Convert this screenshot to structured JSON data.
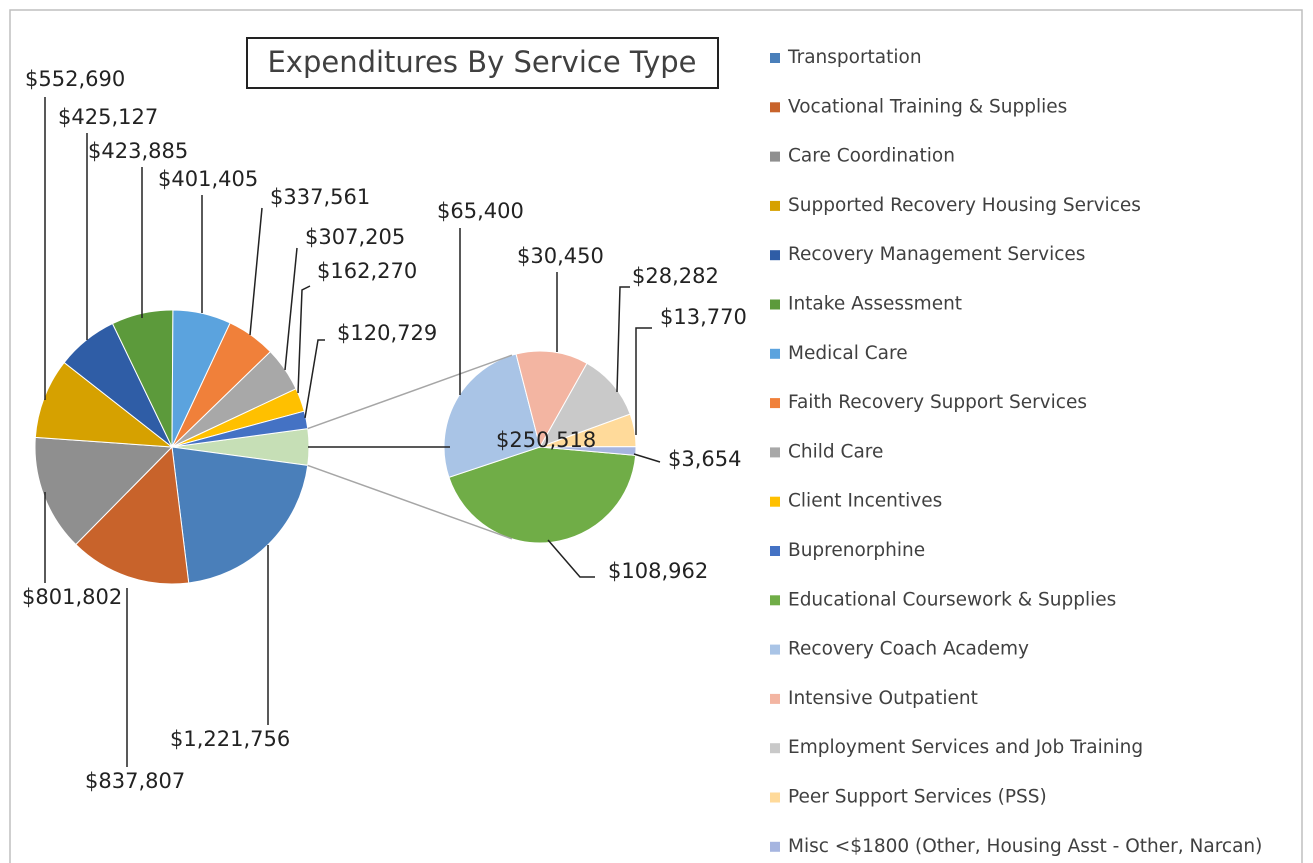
{
  "chart_data": {
    "type": "pie",
    "title": "Expenditures By Service Type",
    "primary": {
      "categories": [
        "Transportation",
        "Vocational Training & Supplies",
        "Care Coordination",
        "Supported Recovery Housing Services",
        "Recovery Management Services",
        "Intake Assessment",
        "Medical Care",
        "Faith Recovery Support Services",
        "Child Care",
        "Client Incentives",
        "Buprenorphine"
      ],
      "values": [
        1221756,
        837807,
        801802,
        552690,
        425127,
        423885,
        401405,
        337561,
        307205,
        162270,
        120729
      ],
      "value_labels": [
        "$1,221,756",
        "$837,807",
        "$801,802",
        "$552,690",
        "$425,127",
        "$423,885",
        "$401,405",
        "$337,561",
        "$307,205",
        "$162,270",
        "$120,729"
      ],
      "colors": [
        "#4a7fba",
        "#c8632b",
        "#8f8f8f",
        "#d6a100",
        "#2f5da6",
        "#5c9a3b",
        "#5ba3de",
        "#f0803a",
        "#a8a8a8",
        "#ffc000",
        "#4472c4"
      ]
    },
    "other": {
      "value": 250518,
      "label": "$250,518",
      "color": "#c6dfb6"
    },
    "secondary": {
      "categories": [
        "Educational Coursework & Supplies",
        "Recovery Coach Academy",
        "Intensive Outpatient",
        "Employment Services and Job Training",
        "Peer Support Services (PSS)",
        "Misc <$1800 (Other, Housing Asst - Other, Narcan)"
      ],
      "values": [
        108962,
        65400,
        30450,
        28282,
        13770,
        3654
      ],
      "value_labels": [
        "$108,962",
        "$65,400",
        "$30,450",
        "$28,282",
        "$13,770",
        "$3,654"
      ],
      "colors": [
        "#70ad47",
        "#a9c4e6",
        "#f3b5a2",
        "#c9c9c9",
        "#ffda9a",
        "#a6b5e0"
      ]
    }
  }
}
